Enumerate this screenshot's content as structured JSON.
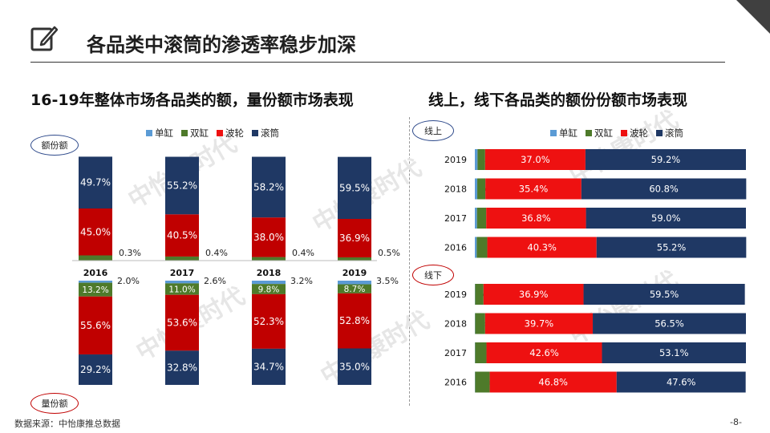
{
  "title": "各品类中滚筒的渗透率稳步加深",
  "left_subtitle": "16-19年整体市场各品类的额，量份额市场表现",
  "right_subtitle": "线上，线下各品类的额份份额市场表现",
  "labels": {
    "value": "额份额",
    "volume": "量份额",
    "online": "线上",
    "offline": "线下"
  },
  "source": "数据来源：中怡康推总数据",
  "page_number": "-8-",
  "watermark": "中怡康时代",
  "icons": {
    "title": "edit-icon"
  },
  "colors": {
    "single_tub": "#5b9bd5",
    "twin_tub": "#4e7a2a",
    "impeller": "#ee1111",
    "drum": "#1f3864",
    "impeller_volume": "#c00000"
  },
  "chart_data": [
    {
      "type": "bar",
      "stacked": true,
      "orientation": "vertical",
      "label": "额份额",
      "categories": [
        "2016",
        "2017",
        "2018",
        "2019"
      ],
      "series": [
        {
          "name": "单缸",
          "values": [
            0.3,
            0.4,
            0.4,
            0.5
          ]
        },
        {
          "name": "双缸",
          "values": [
            5.0,
            3.9,
            3.4,
            3.1
          ]
        },
        {
          "name": "波轮",
          "values": [
            45.0,
            40.5,
            38.0,
            36.9
          ]
        },
        {
          "name": "滚筒",
          "values": [
            49.7,
            55.2,
            58.2,
            59.5
          ]
        }
      ],
      "legend": "top",
      "unit": "%"
    },
    {
      "type": "bar",
      "stacked": true,
      "orientation": "vertical",
      "label": "量份额",
      "categories": [
        "2016",
        "2017",
        "2018",
        "2019"
      ],
      "series": [
        {
          "name": "单缸",
          "values": [
            2.0,
            2.6,
            3.2,
            3.5
          ]
        },
        {
          "name": "双缸",
          "values": [
            13.2,
            11.0,
            9.8,
            8.7
          ]
        },
        {
          "name": "波轮",
          "values": [
            55.6,
            53.6,
            52.3,
            52.8
          ]
        },
        {
          "name": "滚筒",
          "values": [
            29.2,
            32.8,
            34.7,
            35.0
          ]
        }
      ],
      "unit": "%"
    },
    {
      "type": "bar",
      "stacked": true,
      "orientation": "horizontal",
      "label": "线上",
      "categories": [
        "2019",
        "2018",
        "2017",
        "2016"
      ],
      "series": [
        {
          "name": "单缸",
          "values": [
            1.0,
            0.9,
            0.8,
            0.7
          ]
        },
        {
          "name": "双缸",
          "values": [
            2.8,
            3.0,
            3.4,
            3.9
          ]
        },
        {
          "name": "波轮",
          "values": [
            37.0,
            35.4,
            36.8,
            40.3
          ]
        },
        {
          "name": "滚筒",
          "values": [
            59.2,
            60.8,
            59.0,
            55.2
          ]
        }
      ],
      "legend": "top",
      "unit": "%"
    },
    {
      "type": "bar",
      "stacked": true,
      "orientation": "horizontal",
      "label": "线下",
      "categories": [
        "2019",
        "2018",
        "2017",
        "2016"
      ],
      "series": [
        {
          "name": "单缸",
          "values": [
            0.1,
            0.1,
            0.1,
            0.1
          ]
        },
        {
          "name": "双缸",
          "values": [
            3.1,
            3.7,
            4.2,
            5.4
          ]
        },
        {
          "name": "波轮",
          "values": [
            36.9,
            39.7,
            42.6,
            46.8
          ]
        },
        {
          "name": "滚筒",
          "values": [
            59.5,
            56.5,
            53.1,
            47.6
          ]
        }
      ],
      "unit": "%"
    }
  ]
}
